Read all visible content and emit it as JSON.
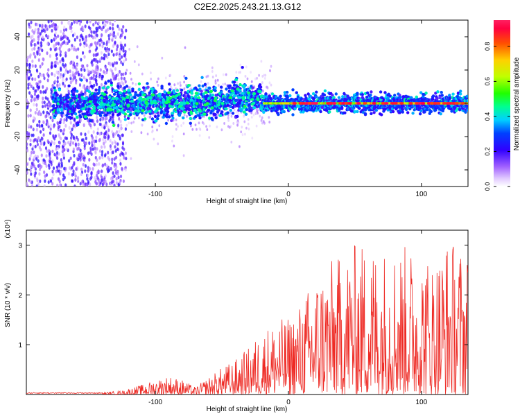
{
  "title": "C2E2.2025.243.21.13.G12",
  "colors": {
    "snr_line": "#ee2a24",
    "axis": "#000000"
  },
  "colorbar": {
    "label": "Normalized spectral amplitude",
    "ticks": [
      "0.0",
      "0.2",
      "0.4",
      "0.6",
      "0.8"
    ],
    "tick_values": [
      0.0,
      0.2,
      0.4,
      0.6,
      0.8
    ],
    "range": [
      0,
      0.95
    ]
  },
  "chart_data": [
    {
      "type": "heatmap",
      "title": "C2E2.2025.243.21.13.G12",
      "xlabel": "Height of straight line (km)",
      "ylabel": "Frequency (Hz)",
      "xlim": [
        -197,
        135
      ],
      "ylim": [
        -50,
        50
      ],
      "x_ticks": [
        -100,
        0,
        100
      ],
      "x_tick_labels": [
        "-100",
        "0",
        "100"
      ],
      "y_ticks": [
        -40,
        -20,
        0,
        20,
        40
      ],
      "y_tick_labels": [
        "-40",
        "-20",
        "0",
        "20",
        "40"
      ],
      "description_points": [
        {
          "x": -190,
          "y": 0,
          "amp": 0.25
        },
        {
          "x": -150,
          "y": -5,
          "amp": 0.4
        },
        {
          "x": -100,
          "y": 0,
          "amp": 0.35
        },
        {
          "x": -60,
          "y": 2,
          "amp": 0.4
        },
        {
          "x": -30,
          "y": 5,
          "amp": 0.45
        },
        {
          "x": 0,
          "y": 0,
          "amp": 0.75
        },
        {
          "x": 50,
          "y": 0,
          "amp": 0.9
        },
        {
          "x": 100,
          "y": 0,
          "amp": 0.9
        },
        {
          "x": 130,
          "y": 0,
          "amp": 0.85
        }
      ]
    },
    {
      "type": "line",
      "xlabel": "Height of straight line (km)",
      "ylabel": "SNR (10 * v/v)",
      "multiplier": "(x10⁴)",
      "xlim": [
        -197,
        135
      ],
      "ylim": [
        0,
        3.3
      ],
      "x_ticks": [
        -100,
        0,
        100
      ],
      "x_tick_labels": [
        "-100",
        "0",
        "100"
      ],
      "y_ticks": [
        1,
        2,
        3
      ],
      "y_tick_labels": [
        "1",
        "2",
        "3"
      ],
      "series": [
        {
          "name": "SNR",
          "envelope_x": [
            -197,
            -140,
            -125,
            -110,
            -100,
            -90,
            -80,
            -70,
            -60,
            -50,
            -40,
            -30,
            -20,
            -10,
            0,
            10,
            20,
            30,
            40,
            50,
            60,
            70,
            80,
            90,
            100,
            110,
            120,
            130,
            135
          ],
          "envelope_y": [
            0.03,
            0.04,
            0.08,
            0.2,
            0.3,
            0.38,
            0.3,
            0.15,
            0.35,
            0.55,
            0.7,
            0.95,
            1.3,
            1.5,
            1.55,
            1.9,
            2.4,
            2.7,
            2.8,
            3.05,
            3.1,
            3.0,
            3.05,
            3.0,
            2.9,
            2.8,
            3.2,
            3.0,
            2.9
          ]
        }
      ]
    }
  ]
}
